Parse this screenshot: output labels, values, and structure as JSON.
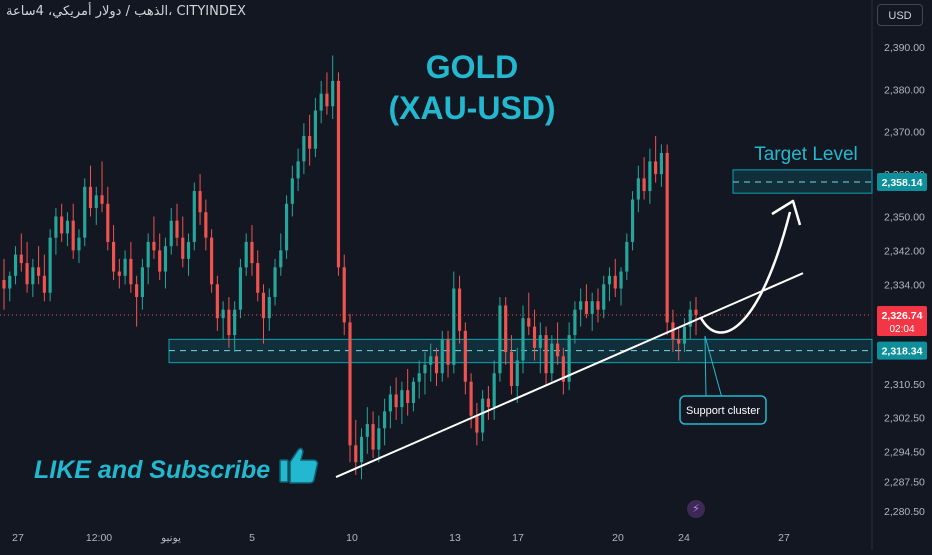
{
  "header": {
    "symbol_title": "الذهب / دولار أمريكي، 4ساعة، CITYINDEX"
  },
  "currency_button": "USD",
  "chart_data": {
    "type": "candlestick",
    "title": "GOLD",
    "subtitle": "(XAU-USD)",
    "y_ticks": [
      2390.0,
      2380.0,
      2370.0,
      2360.0,
      2350.0,
      2342.0,
      2334.0,
      2310.5,
      2302.5,
      2294.5,
      2287.5,
      2280.5
    ],
    "x_ticks": [
      "27",
      "12:00",
      "يونيو",
      "5",
      "10",
      "13",
      "17",
      "20",
      "24",
      "27"
    ],
    "current_price": {
      "value": "2,326.74",
      "countdown": "02:04"
    },
    "levels": [
      {
        "label": "2,358.14",
        "value": 2358.14,
        "name": "Target Level",
        "low": 2355.5,
        "high": 2361.0
      },
      {
        "label": "2,318.34",
        "value": 2318.34,
        "low": 2315.5,
        "high": 2321.0
      }
    ],
    "annotations": {
      "target_text": "Target Level",
      "support_text": "Support cluster",
      "cta_text": "LIKE and Subscribe"
    },
    "trendline": {
      "from": {
        "x": "~9 June",
        "y": 2288.5
      },
      "to": {
        "x": "~25 June",
        "y": 2330.0
      }
    },
    "candles_ohlc": [
      [
        2335,
        2340,
        2328,
        2333
      ],
      [
        2333,
        2337,
        2330,
        2336
      ],
      [
        2336,
        2343,
        2334,
        2341
      ],
      [
        2341,
        2346,
        2337,
        2339
      ],
      [
        2339,
        2344,
        2332,
        2334
      ],
      [
        2334,
        2340,
        2331,
        2338
      ],
      [
        2338,
        2343,
        2334,
        2336
      ],
      [
        2336,
        2341,
        2330,
        2332
      ],
      [
        2332,
        2347,
        2330,
        2345
      ],
      [
        2345,
        2352,
        2341,
        2350
      ],
      [
        2350,
        2353,
        2344,
        2346
      ],
      [
        2346,
        2351,
        2343,
        2349
      ],
      [
        2349,
        2353,
        2340,
        2342
      ],
      [
        2342,
        2347,
        2339,
        2345
      ],
      [
        2345,
        2359,
        2343,
        2357
      ],
      [
        2357,
        2362,
        2350,
        2352
      ],
      [
        2352,
        2357,
        2348,
        2355
      ],
      [
        2355,
        2363,
        2351,
        2353
      ],
      [
        2353,
        2357,
        2342,
        2344
      ],
      [
        2344,
        2348,
        2335,
        2337
      ],
      [
        2337,
        2340,
        2333,
        2336
      ],
      [
        2336,
        2342,
        2334,
        2340
      ],
      [
        2340,
        2344,
        2332,
        2334
      ],
      [
        2334,
        2336,
        2324,
        2331
      ],
      [
        2331,
        2340,
        2328,
        2338
      ],
      [
        2338,
        2346,
        2334,
        2344
      ],
      [
        2344,
        2350,
        2340,
        2342
      ],
      [
        2342,
        2346,
        2335,
        2337
      ],
      [
        2337,
        2345,
        2333,
        2343
      ],
      [
        2343,
        2352,
        2341,
        2349
      ],
      [
        2349,
        2353,
        2343,
        2345
      ],
      [
        2345,
        2350,
        2338,
        2340
      ],
      [
        2340,
        2346,
        2336,
        2344
      ],
      [
        2344,
        2358,
        2342,
        2356
      ],
      [
        2356,
        2360,
        2348,
        2351
      ],
      [
        2351,
        2354,
        2342,
        2345
      ],
      [
        2345,
        2347,
        2332,
        2334
      ],
      [
        2334,
        2336,
        2323,
        2326
      ],
      [
        2326,
        2330,
        2321,
        2328
      ],
      [
        2328,
        2331,
        2319,
        2322
      ],
      [
        2322,
        2330,
        2318,
        2328
      ],
      [
        2328,
        2340,
        2326,
        2338
      ],
      [
        2338,
        2346,
        2336,
        2344
      ],
      [
        2344,
        2348,
        2336,
        2339
      ],
      [
        2339,
        2342,
        2330,
        2332
      ],
      [
        2332,
        2334,
        2320,
        2326
      ],
      [
        2326,
        2333,
        2323,
        2331
      ],
      [
        2331,
        2340,
        2329,
        2338
      ],
      [
        2338,
        2346,
        2336,
        2342
      ],
      [
        2342,
        2355,
        2340,
        2353
      ],
      [
        2353,
        2362,
        2350,
        2359
      ],
      [
        2359,
        2366,
        2356,
        2363
      ],
      [
        2363,
        2372,
        2360,
        2369
      ],
      [
        2369,
        2374,
        2362,
        2366
      ],
      [
        2366,
        2378,
        2364,
        2375
      ],
      [
        2375,
        2382,
        2372,
        2379
      ],
      [
        2379,
        2384,
        2374,
        2376
      ],
      [
        2376,
        2388,
        2373,
        2382
      ],
      [
        2382,
        2384,
        2336,
        2338
      ],
      [
        2338,
        2341,
        2322,
        2325
      ],
      [
        2325,
        2327,
        2292,
        2296
      ],
      [
        2296,
        2302,
        2289,
        2292
      ],
      [
        2292,
        2300,
        2288,
        2298
      ],
      [
        2298,
        2305,
        2294,
        2301
      ],
      [
        2301,
        2304,
        2293,
        2295
      ],
      [
        2295,
        2303,
        2292,
        2300
      ],
      [
        2300,
        2307,
        2296,
        2304
      ],
      [
        2304,
        2310,
        2300,
        2308
      ],
      [
        2308,
        2312,
        2302,
        2305
      ],
      [
        2305,
        2311,
        2301,
        2309
      ],
      [
        2309,
        2314,
        2303,
        2306
      ],
      [
        2306,
        2312,
        2304,
        2311
      ],
      [
        2311,
        2316,
        2307,
        2313
      ],
      [
        2313,
        2318,
        2308,
        2315
      ],
      [
        2315,
        2320,
        2311,
        2317
      ],
      [
        2317,
        2319,
        2310,
        2313
      ],
      [
        2313,
        2323,
        2311,
        2321
      ],
      [
        2321,
        2323,
        2312,
        2315
      ],
      [
        2315,
        2337,
        2313,
        2333
      ],
      [
        2333,
        2336,
        2320,
        2323
      ],
      [
        2323,
        2325,
        2308,
        2311
      ],
      [
        2311,
        2313,
        2300,
        2303
      ],
      [
        2303,
        2306,
        2296,
        2299
      ],
      [
        2299,
        2309,
        2297,
        2307
      ],
      [
        2307,
        2310,
        2302,
        2305
      ],
      [
        2305,
        2316,
        2302,
        2313
      ],
      [
        2313,
        2331,
        2311,
        2329
      ],
      [
        2329,
        2331,
        2315,
        2318
      ],
      [
        2318,
        2322,
        2308,
        2310
      ],
      [
        2310,
        2319,
        2306,
        2316
      ],
      [
        2316,
        2329,
        2313,
        2326
      ],
      [
        2326,
        2332,
        2322,
        2324
      ],
      [
        2324,
        2328,
        2316,
        2319
      ],
      [
        2319,
        2325,
        2313,
        2322
      ],
      [
        2322,
        2324,
        2310,
        2313
      ],
      [
        2313,
        2322,
        2311,
        2320
      ],
      [
        2320,
        2325,
        2315,
        2317
      ],
      [
        2317,
        2319,
        2308,
        2311
      ],
      [
        2311,
        2325,
        2309,
        2322
      ],
      [
        2322,
        2330,
        2320,
        2328
      ],
      [
        2328,
        2333,
        2324,
        2330
      ],
      [
        2330,
        2334,
        2326,
        2327
      ],
      [
        2327,
        2332,
        2323,
        2330
      ],
      [
        2330,
        2333,
        2325,
        2328
      ],
      [
        2328,
        2336,
        2326,
        2334
      ],
      [
        2334,
        2338,
        2330,
        2336
      ],
      [
        2336,
        2340,
        2331,
        2333
      ],
      [
        2333,
        2338,
        2329,
        2337
      ],
      [
        2337,
        2346,
        2335,
        2344
      ],
      [
        2344,
        2356,
        2342,
        2354
      ],
      [
        2354,
        2362,
        2351,
        2359
      ],
      [
        2359,
        2364,
        2354,
        2356
      ],
      [
        2356,
        2366,
        2353,
        2363
      ],
      [
        2363,
        2369,
        2358,
        2360
      ],
      [
        2360,
        2367,
        2357,
        2365
      ],
      [
        2365,
        2367,
        2322,
        2325
      ],
      [
        2325,
        2328,
        2318,
        2321
      ],
      [
        2321,
        2324,
        2316,
        2320
      ],
      [
        2320,
        2326,
        2318,
        2324
      ],
      [
        2324,
        2330,
        2321,
        2328
      ],
      [
        2328,
        2331,
        2322,
        2326.74
      ]
    ]
  }
}
